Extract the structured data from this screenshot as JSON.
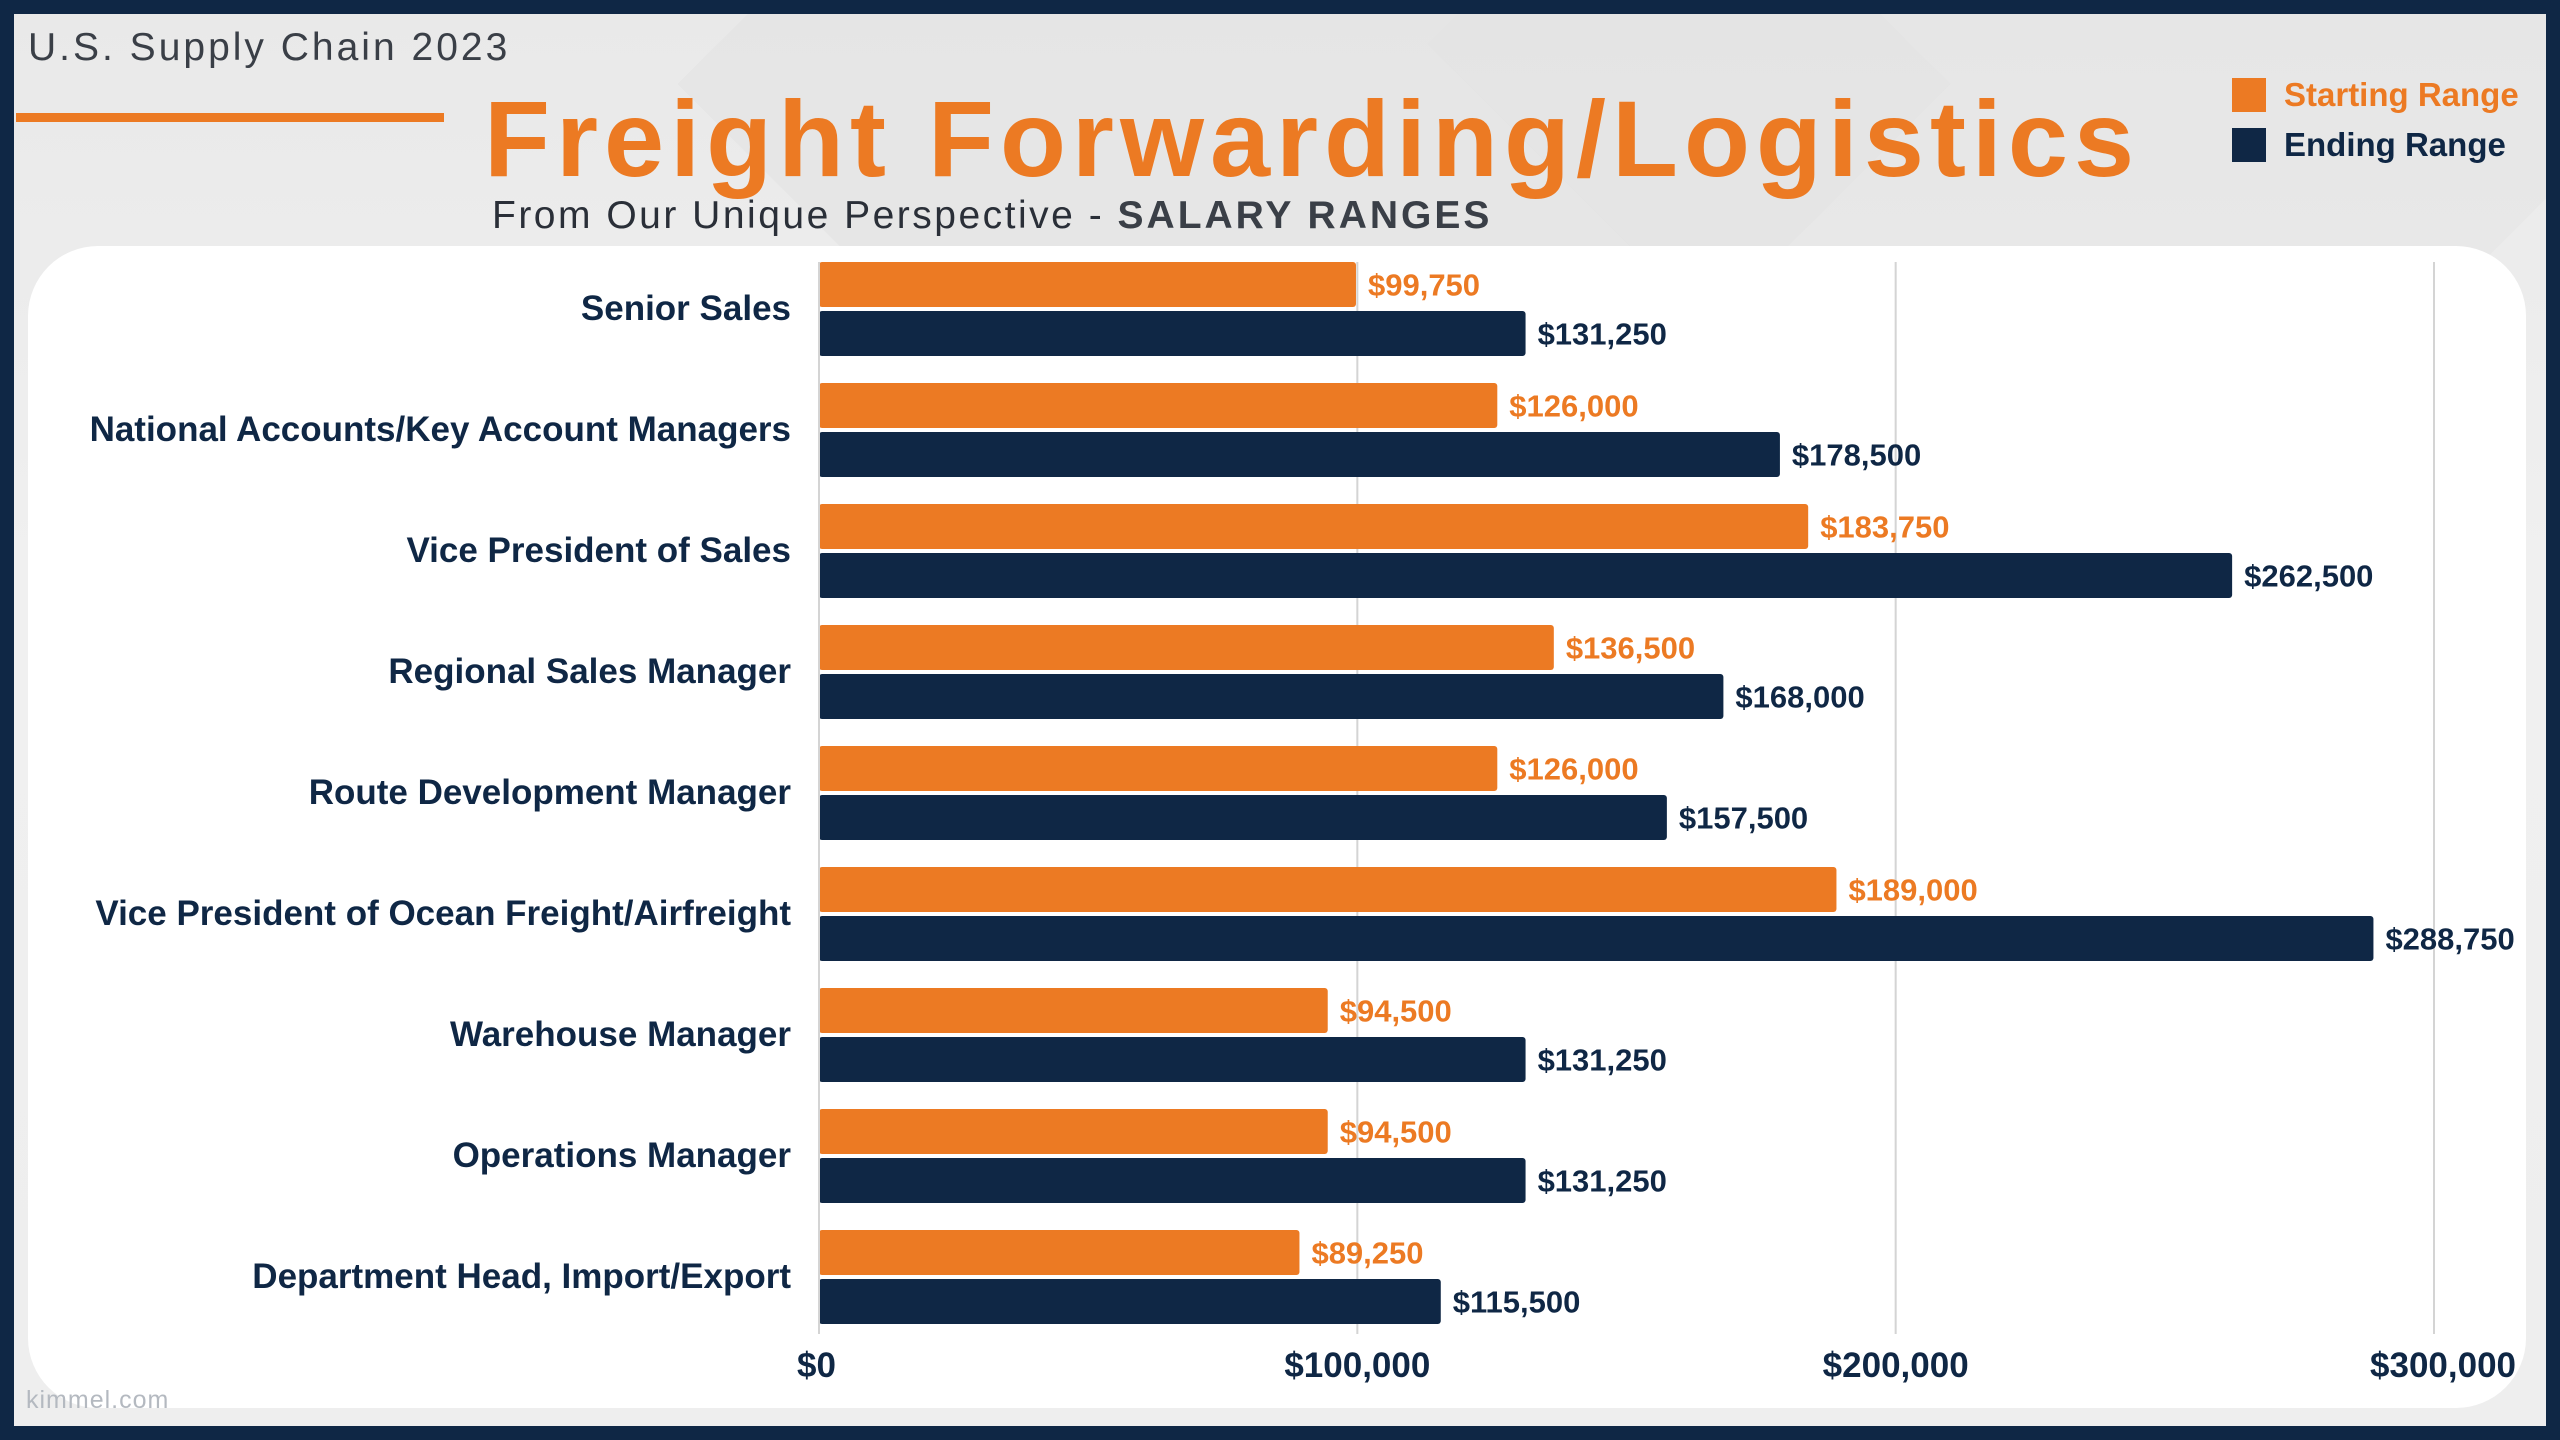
{
  "header": {
    "kicker": "U.S. Supply Chain 2023",
    "title": "Freight Forwarding/Logistics",
    "subtitle_prefix": "From Our Unique Perspective - ",
    "subtitle_emphasis": "SALARY RANGES"
  },
  "footer": {
    "watermark": "kimmel.com"
  },
  "colors": {
    "start": "#ec7a23",
    "end": "#0f2745",
    "grid": "#d4d4d4"
  },
  "chart_data": {
    "type": "bar",
    "orientation": "horizontal",
    "title": "Freight Forwarding/Logistics",
    "subtitle": "From Our Unique Perspective - SALARY RANGES",
    "categories": [
      "Senior Sales",
      "National Accounts/Key Account Managers",
      "Vice President of Sales",
      "Regional Sales Manager",
      "Route Development Manager",
      "Vice President of Ocean Freight/Airfreight",
      "Warehouse Manager",
      "Operations Manager",
      "Department Head, Import/Export"
    ],
    "series": [
      {
        "name": "Starting Range",
        "values": [
          99750,
          126000,
          183750,
          136500,
          126000,
          189000,
          94500,
          94500,
          89250
        ],
        "labels": [
          "$99,750",
          "$126,000",
          "$183,750",
          "$136,500",
          "$126,000",
          "$189,000",
          "$94,500",
          "$94,500",
          "$89,250"
        ]
      },
      {
        "name": "Ending Range",
        "values": [
          131250,
          178500,
          262500,
          168000,
          157500,
          288750,
          131250,
          131250,
          115500
        ],
        "labels": [
          "$131,250",
          "$178,500",
          "$262,500",
          "$168,000",
          "$157,500",
          "$288,750",
          "$131,250",
          "$131,250",
          "$115,500"
        ]
      }
    ],
    "xlim": [
      0,
      300000
    ],
    "x_ticks": [
      0,
      100000,
      200000,
      300000
    ],
    "x_tick_labels": [
      "$0",
      "$100,000",
      "$200,000",
      "$300,000"
    ],
    "xlabel": "",
    "ylabel": "",
    "grid": "vertical",
    "legend": "top-right"
  }
}
